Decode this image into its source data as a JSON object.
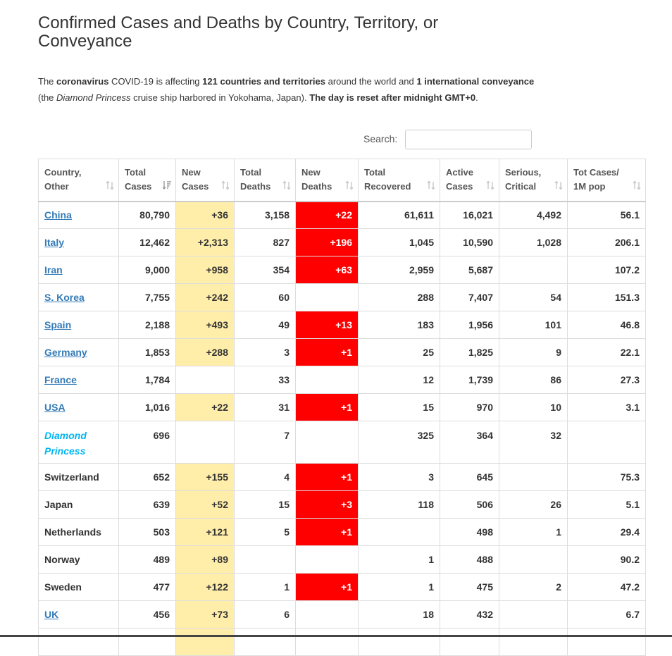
{
  "page": {
    "title": "Confirmed Cases and Deaths by Country, Territory, or Conveyance"
  },
  "intro": {
    "t1": "The ",
    "b1": "coronavirus",
    "t2": " COVID-19 is affecting ",
    "b2": "121 countries and territories",
    "t3": " around the world and ",
    "b3": "1 international conveyance",
    "t4": " (the ",
    "i1": "Diamond Princess",
    "t5": " cruise ship harbored in Yokohama, Japan). ",
    "b4": "The day is reset after midnight GMT+0",
    "t6": "."
  },
  "search": {
    "label": "Search:",
    "value": ""
  },
  "table": {
    "headers": [
      {
        "line1": "Country,",
        "line2": "Other"
      },
      {
        "line1": "Total",
        "line2": "Cases"
      },
      {
        "line1": "New",
        "line2": "Cases"
      },
      {
        "line1": "Total",
        "line2": "Deaths"
      },
      {
        "line1": "New",
        "line2": "Deaths"
      },
      {
        "line1": "Total",
        "line2": "Recovered"
      },
      {
        "line1": "Active",
        "line2": "Cases"
      },
      {
        "line1": "Serious,",
        "line2": "Critical"
      },
      {
        "line1": "Tot Cases/",
        "line2": "1M pop"
      }
    ],
    "rows": [
      {
        "country": "China",
        "total_cases": "80,790",
        "new_cases": "+36",
        "total_deaths": "3,158",
        "new_deaths": "+22",
        "total_recovered": "61,611",
        "active_cases": "16,021",
        "serious_critical": "4,492",
        "per_million": "56.1"
      },
      {
        "country": "Italy",
        "total_cases": "12,462",
        "new_cases": "+2,313",
        "total_deaths": "827",
        "new_deaths": "+196",
        "total_recovered": "1,045",
        "active_cases": "10,590",
        "serious_critical": "1,028",
        "per_million": "206.1"
      },
      {
        "country": "Iran",
        "total_cases": "9,000",
        "new_cases": "+958",
        "total_deaths": "354",
        "new_deaths": "+63",
        "total_recovered": "2,959",
        "active_cases": "5,687",
        "serious_critical": "",
        "per_million": "107.2"
      },
      {
        "country": "S. Korea",
        "total_cases": "7,755",
        "new_cases": "+242",
        "total_deaths": "60",
        "new_deaths": "",
        "total_recovered": "288",
        "active_cases": "7,407",
        "serious_critical": "54",
        "per_million": "151.3"
      },
      {
        "country": "Spain",
        "total_cases": "2,188",
        "new_cases": "+493",
        "total_deaths": "49",
        "new_deaths": "+13",
        "total_recovered": "183",
        "active_cases": "1,956",
        "serious_critical": "101",
        "per_million": "46.8"
      },
      {
        "country": "Germany",
        "total_cases": "1,853",
        "new_cases": "+288",
        "total_deaths": "3",
        "new_deaths": "+1",
        "total_recovered": "25",
        "active_cases": "1,825",
        "serious_critical": "9",
        "per_million": "22.1"
      },
      {
        "country": "France",
        "total_cases": "1,784",
        "new_cases": "",
        "total_deaths": "33",
        "new_deaths": "",
        "total_recovered": "12",
        "active_cases": "1,739",
        "serious_critical": "86",
        "per_million": "27.3"
      },
      {
        "country": "USA",
        "total_cases": "1,016",
        "new_cases": "+22",
        "total_deaths": "31",
        "new_deaths": "+1",
        "total_recovered": "15",
        "active_cases": "970",
        "serious_critical": "10",
        "per_million": "3.1"
      },
      {
        "country": "Diamond Princess",
        "total_cases": "696",
        "new_cases": "",
        "total_deaths": "7",
        "new_deaths": "",
        "total_recovered": "325",
        "active_cases": "364",
        "serious_critical": "32",
        "per_million": ""
      },
      {
        "country": "Switzerland",
        "total_cases": "652",
        "new_cases": "+155",
        "total_deaths": "4",
        "new_deaths": "+1",
        "total_recovered": "3",
        "active_cases": "645",
        "serious_critical": "",
        "per_million": "75.3"
      },
      {
        "country": "Japan",
        "total_cases": "639",
        "new_cases": "+52",
        "total_deaths": "15",
        "new_deaths": "+3",
        "total_recovered": "118",
        "active_cases": "506",
        "serious_critical": "26",
        "per_million": "5.1"
      },
      {
        "country": "Netherlands",
        "total_cases": "503",
        "new_cases": "+121",
        "total_deaths": "5",
        "new_deaths": "+1",
        "total_recovered": "",
        "active_cases": "498",
        "serious_critical": "1",
        "per_million": "29.4"
      },
      {
        "country": "Norway",
        "total_cases": "489",
        "new_cases": "+89",
        "total_deaths": "",
        "new_deaths": "",
        "total_recovered": "1",
        "active_cases": "488",
        "serious_critical": "",
        "per_million": "90.2"
      },
      {
        "country": "Sweden",
        "total_cases": "477",
        "new_cases": "+122",
        "total_deaths": "1",
        "new_deaths": "+1",
        "total_recovered": "1",
        "active_cases": "475",
        "serious_critical": "2",
        "per_million": "47.2"
      },
      {
        "country": "UK",
        "total_cases": "456",
        "new_cases": "+73",
        "total_deaths": "6",
        "new_deaths": "",
        "total_recovered": "18",
        "active_cases": "432",
        "serious_critical": "",
        "per_million": "6.7"
      }
    ]
  },
  "icons": {
    "sort": "sort-arrows-icon",
    "sorted_desc": "sort-descending-icon"
  },
  "colors": {
    "new_cases_bg": "#ffeeaa",
    "new_deaths_bg": "#ff0000",
    "link": "#337ab7",
    "conveyance": "#00b5f0"
  }
}
